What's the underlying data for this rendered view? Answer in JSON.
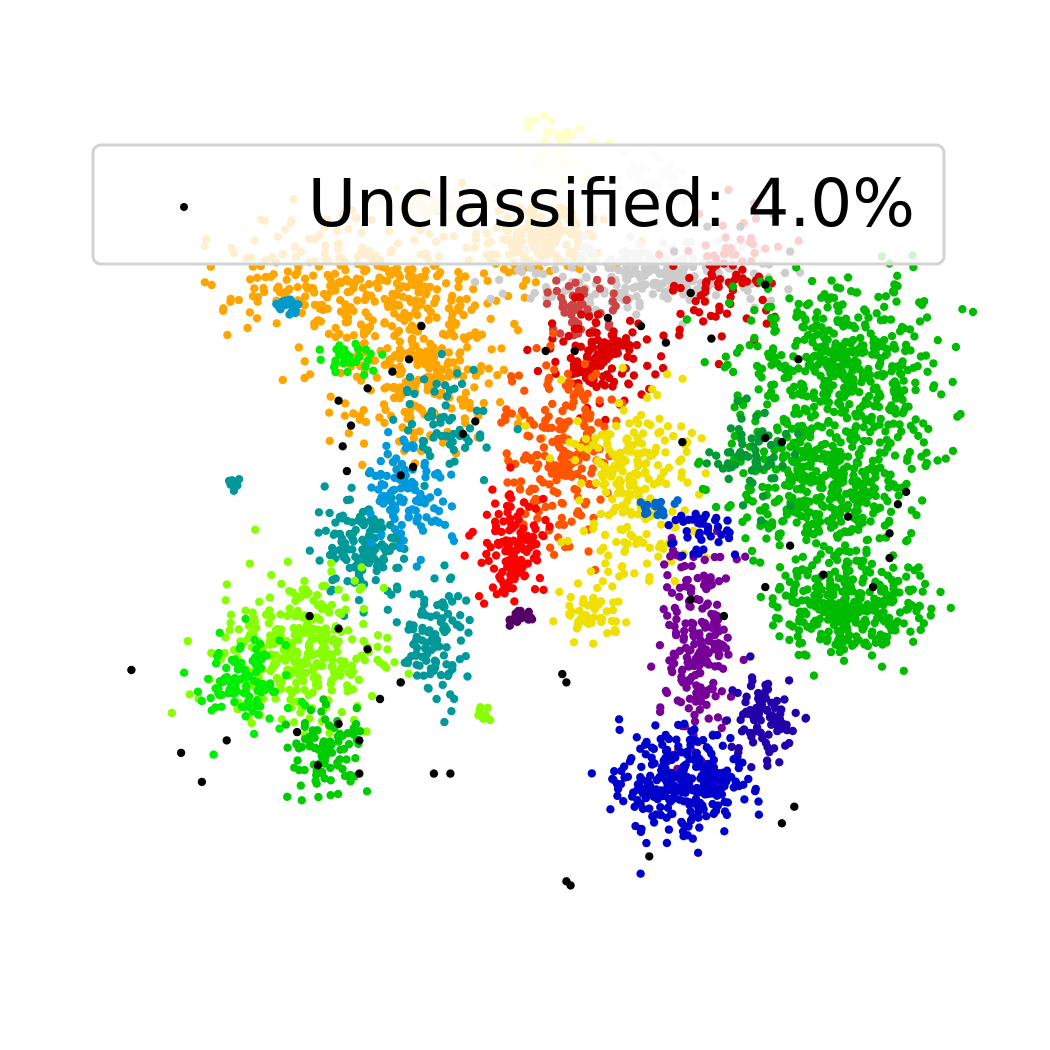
{
  "chart_data": {
    "type": "scatter",
    "title": "",
    "xlabel": "",
    "ylabel": "",
    "axes_visible": false,
    "grid": false,
    "legend": {
      "placement": "top",
      "entries": [
        {
          "label": "Unclassified: 4.0%",
          "color": "#000000",
          "marker": "dot"
        }
      ]
    },
    "clusters": [
      {
        "color": "#ffa500",
        "cx": -0.4,
        "cy": 0.58,
        "sx": 0.16,
        "sy": 0.07,
        "n": 300
      },
      {
        "color": "#ffa500",
        "cx": -0.25,
        "cy": 0.38,
        "sx": 0.1,
        "sy": 0.1,
        "n": 260
      },
      {
        "color": "#ffa500",
        "cx": 0.03,
        "cy": 0.68,
        "sx": 0.07,
        "sy": 0.04,
        "n": 160
      },
      {
        "color": "#ffe4b5",
        "cx": -0.22,
        "cy": 0.78,
        "sx": 0.08,
        "sy": 0.02,
        "n": 40
      },
      {
        "color": "#cccccc",
        "cx": 0.3,
        "cy": 0.6,
        "sx": 0.14,
        "sy": 0.04,
        "n": 230
      },
      {
        "color": "#dd0000",
        "cx": 0.48,
        "cy": 0.6,
        "sx": 0.07,
        "sy": 0.08,
        "n": 90
      },
      {
        "color": "#cc4444",
        "cx": 0.14,
        "cy": 0.52,
        "sx": 0.04,
        "sy": 0.03,
        "n": 50
      },
      {
        "color": "#dd0000",
        "cx": 0.18,
        "cy": 0.4,
        "sx": 0.06,
        "sy": 0.05,
        "n": 130
      },
      {
        "color": "#ff5500",
        "cx": 0.08,
        "cy": 0.18,
        "sx": 0.06,
        "sy": 0.1,
        "n": 200
      },
      {
        "color": "#ff0000",
        "cx": -0.03,
        "cy": -0.05,
        "sx": 0.04,
        "sy": 0.07,
        "n": 120
      },
      {
        "color": "#f0e000",
        "cx": 0.26,
        "cy": 0.1,
        "sx": 0.07,
        "sy": 0.1,
        "n": 220
      },
      {
        "color": "#f0e000",
        "cx": 0.16,
        "cy": -0.22,
        "sx": 0.04,
        "sy": 0.03,
        "n": 50
      },
      {
        "color": "#00bb00",
        "cx": 0.76,
        "cy": 0.38,
        "sx": 0.12,
        "sy": 0.1,
        "n": 450
      },
      {
        "color": "#00bb00",
        "cx": 0.72,
        "cy": 0.08,
        "sx": 0.1,
        "sy": 0.08,
        "n": 360
      },
      {
        "color": "#00bb00",
        "cx": 0.78,
        "cy": -0.2,
        "sx": 0.09,
        "sy": 0.06,
        "n": 320
      },
      {
        "color": "#009933",
        "cx": 0.55,
        "cy": 0.18,
        "sx": 0.05,
        "sy": 0.06,
        "n": 60
      },
      {
        "color": "#009999",
        "cx": -0.38,
        "cy": -0.05,
        "sx": 0.05,
        "sy": 0.06,
        "n": 140
      },
      {
        "color": "#009999",
        "cx": -0.2,
        "cy": 0.25,
        "sx": 0.05,
        "sy": 0.06,
        "n": 60
      },
      {
        "color": "#009999",
        "cx": -0.22,
        "cy": -0.28,
        "sx": 0.04,
        "sy": 0.08,
        "n": 110
      },
      {
        "color": "#0099dd",
        "cx": -0.28,
        "cy": 0.08,
        "sx": 0.05,
        "sy": 0.06,
        "n": 110
      },
      {
        "color": "#0099cc",
        "cx": -0.57,
        "cy": 0.53,
        "sx": 0.015,
        "sy": 0.01,
        "n": 20
      },
      {
        "color": "#009999",
        "cx": -0.7,
        "cy": 0.1,
        "sx": 0.01,
        "sy": 0.01,
        "n": 12
      },
      {
        "color": "#88ff00",
        "cx": -0.55,
        "cy": -0.3,
        "sx": 0.09,
        "sy": 0.08,
        "n": 320
      },
      {
        "color": "#00ee00",
        "cx": -0.68,
        "cy": -0.38,
        "sx": 0.05,
        "sy": 0.06,
        "n": 110
      },
      {
        "color": "#00cc00",
        "cx": -0.48,
        "cy": -0.55,
        "sx": 0.04,
        "sy": 0.05,
        "n": 90
      },
      {
        "color": "#00ee00",
        "cx": -0.42,
        "cy": 0.4,
        "sx": 0.03,
        "sy": 0.02,
        "n": 30
      },
      {
        "color": "#88ff00",
        "cx": -0.1,
        "cy": -0.45,
        "sx": 0.01,
        "sy": 0.01,
        "n": 8
      },
      {
        "color": "#770099",
        "cx": 0.42,
        "cy": -0.3,
        "sx": 0.04,
        "sy": 0.12,
        "n": 200
      },
      {
        "color": "#0000cc",
        "cx": 0.38,
        "cy": -0.62,
        "sx": 0.07,
        "sy": 0.06,
        "n": 280
      },
      {
        "color": "#2200aa",
        "cx": 0.57,
        "cy": -0.47,
        "sx": 0.04,
        "sy": 0.05,
        "n": 90
      },
      {
        "color": "#0000cc",
        "cx": 0.42,
        "cy": -0.02,
        "sx": 0.04,
        "sy": 0.03,
        "n": 40
      },
      {
        "color": "#0066cc",
        "cx": 0.32,
        "cy": 0.04,
        "sx": 0.02,
        "sy": 0.01,
        "n": 16
      },
      {
        "color": "#550066",
        "cx": -0.01,
        "cy": -0.22,
        "sx": 0.015,
        "sy": 0.01,
        "n": 22
      },
      {
        "color": "#ffffcc",
        "cx": 0.08,
        "cy": 0.9,
        "sx": 0.05,
        "sy": 0.05,
        "n": 50
      },
      {
        "color": "#eeeeee",
        "cx": 0.3,
        "cy": 0.82,
        "sx": 0.04,
        "sy": 0.03,
        "n": 40
      }
    ],
    "unclassified": {
      "label": "Unclassified",
      "fraction_percent": 4.0,
      "color": "#000000",
      "points": [
        [
          -0.95,
          -0.35
        ],
        [
          -0.83,
          -0.55
        ],
        [
          -0.78,
          -0.62
        ],
        [
          -0.72,
          -0.52
        ],
        [
          -0.55,
          -0.5
        ],
        [
          -0.5,
          -0.58
        ],
        [
          -0.45,
          -0.48
        ],
        [
          -0.4,
          -0.52
        ],
        [
          -0.35,
          -0.42
        ],
        [
          -0.38,
          -0.3
        ],
        [
          -0.3,
          -0.38
        ],
        [
          -0.45,
          -0.25
        ],
        [
          -0.52,
          -0.22
        ],
        [
          -0.4,
          -0.6
        ],
        [
          -0.22,
          -0.6
        ],
        [
          -0.18,
          -0.6
        ],
        [
          -0.42,
          0.24
        ],
        [
          -0.45,
          0.3
        ],
        [
          -0.38,
          0.33
        ],
        [
          -0.44,
          0.19
        ],
        [
          -0.43,
          0.13
        ],
        [
          -0.3,
          0.12
        ],
        [
          -0.27,
          0.14
        ],
        [
          -0.32,
          0.37
        ],
        [
          -0.28,
          0.4
        ],
        [
          -0.25,
          0.48
        ],
        [
          -0.12,
          0.25
        ],
        [
          0.05,
          0.42
        ],
        [
          0.12,
          0.42
        ],
        [
          0.2,
          0.5
        ],
        [
          0.28,
          0.48
        ],
        [
          0.34,
          0.44
        ],
        [
          0.36,
          0.66
        ],
        [
          0.44,
          0.72
        ],
        [
          0.52,
          0.72
        ],
        [
          0.6,
          0.75
        ],
        [
          0.64,
          0.66
        ],
        [
          0.4,
          0.56
        ],
        [
          0.45,
          0.45
        ],
        [
          0.58,
          0.58
        ],
        [
          0.66,
          0.4
        ],
        [
          0.62,
          0.2
        ],
        [
          0.58,
          0.21
        ],
        [
          0.64,
          -0.05
        ],
        [
          0.72,
          -0.12
        ],
        [
          0.78,
          0.02
        ],
        [
          0.88,
          -0.02
        ],
        [
          0.9,
          0.05
        ],
        [
          0.92,
          0.08
        ],
        [
          0.88,
          -0.08
        ],
        [
          0.84,
          -0.15
        ],
        [
          0.4,
          -0.18
        ],
        [
          0.48,
          -0.22
        ],
        [
          0.58,
          -0.15
        ],
        [
          0.62,
          -0.72
        ],
        [
          0.65,
          -0.68
        ],
        [
          0.1,
          -0.38
        ],
        [
          0.09,
          -0.36
        ],
        [
          0.1,
          -0.86
        ],
        [
          0.11,
          -0.87
        ],
        [
          0.38,
          0.2
        ],
        [
          0.3,
          -0.8
        ],
        [
          -0.3,
          -0.38
        ],
        [
          -0.15,
          0.22
        ]
      ]
    },
    "xlim": [
      -1.05,
      1.05
    ],
    "ylim": [
      -1.05,
      1.05
    ]
  }
}
